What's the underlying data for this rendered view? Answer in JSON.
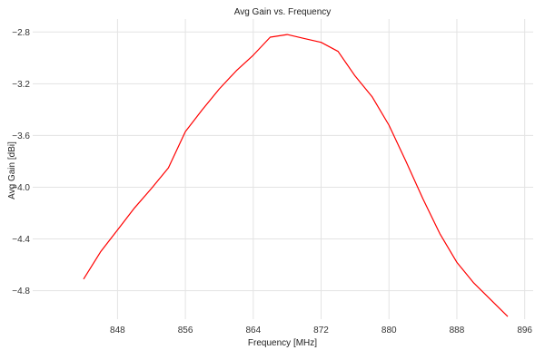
{
  "chart_data": {
    "type": "line",
    "title": "Avg Gain vs. Frequency",
    "xlabel": "Frequency [MHz]",
    "ylabel": "Avg Gain [dBi]",
    "xlim": [
      838,
      897
    ],
    "ylim": [
      -5.02,
      -2.7
    ],
    "xticks": [
      848,
      856,
      864,
      872,
      880,
      888,
      896
    ],
    "yticks": [
      -4.8,
      -4.4,
      -4.0,
      -3.6,
      -3.2,
      -2.8
    ],
    "ytick_labels": [
      "−4.8",
      "−4.4",
      "−4.0",
      "−3.6",
      "−3.2",
      "−2.8"
    ],
    "grid": true,
    "legend": "none",
    "series": [
      {
        "color": "#ff0000",
        "x": [
          844,
          846,
          848,
          850,
          852,
          854,
          856,
          858,
          860,
          862,
          864,
          866,
          868,
          870,
          872,
          874,
          876,
          878,
          880,
          882,
          884,
          886,
          888,
          890,
          892,
          894
        ],
        "y": [
          -4.71,
          -4.5,
          -4.33,
          -4.16,
          -4.01,
          -3.85,
          -3.57,
          -3.4,
          -3.24,
          -3.1,
          -2.98,
          -2.84,
          -2.82,
          -2.85,
          -2.88,
          -2.95,
          -3.14,
          -3.3,
          -3.52,
          -3.8,
          -4.09,
          -4.36,
          -4.58,
          -4.74,
          -4.87,
          -5.0
        ]
      }
    ]
  }
}
